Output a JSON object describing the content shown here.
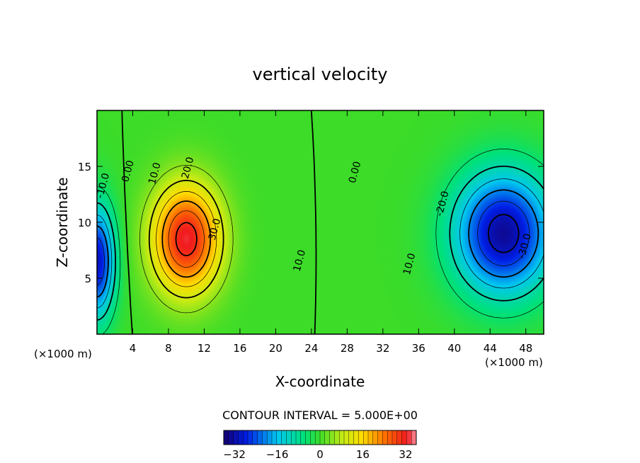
{
  "chart_data": {
    "type": "heatmap",
    "title": "vertical velocity",
    "xlabel": "X-coordinate",
    "ylabel": "Z-coordinate",
    "x_unit_left": "(×1000 m)",
    "x_unit_right": "(×1000 m)",
    "xlim": [
      0,
      50
    ],
    "ylim": [
      0,
      20
    ],
    "x_ticks": [
      4,
      8,
      12,
      16,
      20,
      24,
      28,
      32,
      36,
      40,
      44,
      48
    ],
    "y_ticks": [
      5,
      10,
      15
    ],
    "contour_interval_text": "CONTOUR INTERVAL = 5.000E+00",
    "contour_interval": 5,
    "field_range": [
      -36,
      36
    ],
    "features": [
      {
        "name": "updraft",
        "x": 10,
        "z": 8.5,
        "peak": 33,
        "sx": 3.8,
        "sz": 4.8
      },
      {
        "name": "downdraft",
        "x": 45.5,
        "z": 9,
        "peak": -33,
        "sx": 5.5,
        "sz": 5.5
      },
      {
        "name": "left-downdraft",
        "x": 0,
        "z": 6.5,
        "peak": -30,
        "sx": 2,
        "sz": 5
      }
    ],
    "contour_labels": [
      {
        "text": "0.00",
        "x": 3.8,
        "z": 14.5
      },
      {
        "text": "10.0",
        "x": 6.8,
        "z": 14.3
      },
      {
        "text": "20.0",
        "x": 10.5,
        "z": 14.8
      },
      {
        "text": "30.0",
        "x": 13.5,
        "z": 9.3
      },
      {
        "text": "10.0",
        "x": 23,
        "z": 6.5
      },
      {
        "text": "0.00",
        "x": 29.2,
        "z": 14.4
      },
      {
        "text": "-10.0",
        "x": 1.0,
        "z": 13.2
      },
      {
        "text": "-20.0",
        "x": 39,
        "z": 11.6
      },
      {
        "text": "10.0",
        "x": 35.3,
        "z": 6.2
      },
      {
        "text": "-30.0",
        "x": 48.2,
        "z": 7.8
      }
    ],
    "colorbar": {
      "ticks": [
        -32,
        -16,
        0,
        16,
        32
      ],
      "tick_labels": [
        "−32",
        "−16",
        "0",
        "16",
        "32"
      ],
      "min": -36,
      "max": 36
    }
  }
}
